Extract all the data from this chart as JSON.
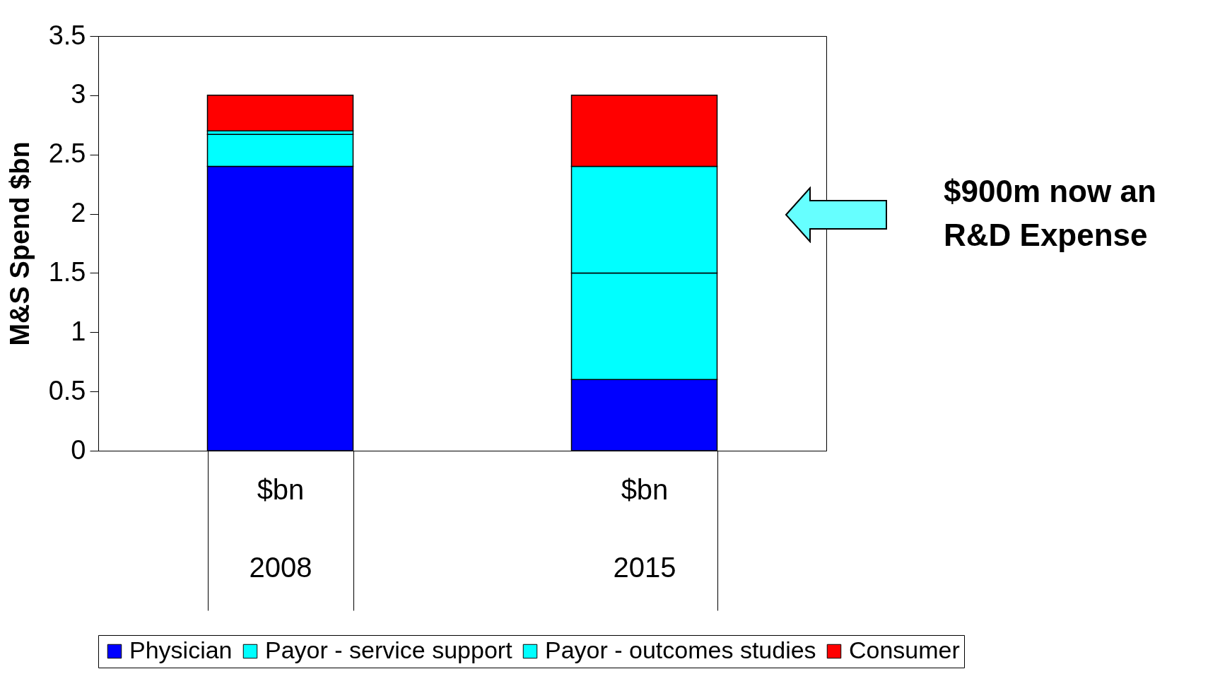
{
  "chart_data": {
    "type": "bar",
    "stacked": true,
    "ylabel": "M&S Spend $bn",
    "categories": [
      "$bn\n2008",
      "$bn\n2015"
    ],
    "series": [
      {
        "name": "Physician",
        "color": "#0000ff",
        "values": [
          2.4,
          0.6
        ]
      },
      {
        "name": "Payor - service support",
        "color": "#00ffff",
        "values": [
          0.27,
          0.9
        ]
      },
      {
        "name": "Payor - outcomes studies",
        "color": "#00ffff",
        "values": [
          0.03,
          0.9
        ]
      },
      {
        "name": "Consumer",
        "color": "#ff0000",
        "values": [
          0.3,
          0.6
        ]
      }
    ],
    "ylim": [
      0,
      3.5
    ],
    "yticks": [
      0,
      0.5,
      1,
      1.5,
      2,
      2.5,
      3,
      3.5
    ],
    "grid": false,
    "legend": "bottom",
    "annotations": [
      "$900m now an R&D Expense"
    ]
  }
}
